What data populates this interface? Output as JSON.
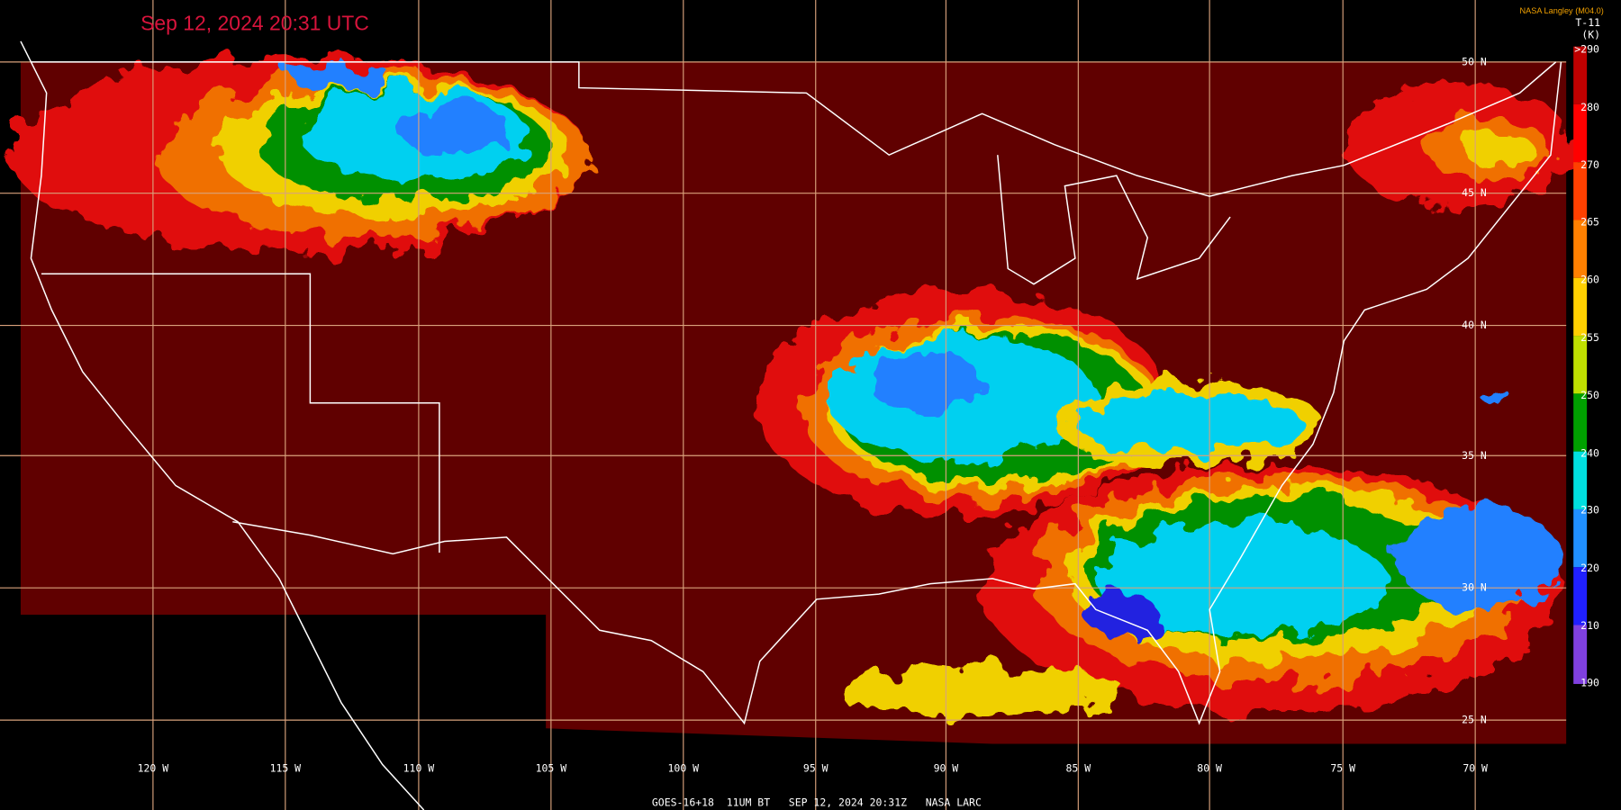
{
  "header": {
    "title": "Sep 12, 2024 20:31 UTC",
    "credit": "NASA Langley (M04.0)"
  },
  "colorbar": {
    "channel": "T-11",
    "unit": "(K)",
    "labels": [
      ">290",
      "280",
      "270",
      "265",
      "260",
      "255",
      "250",
      "240",
      "230",
      "220",
      "210",
      "190"
    ]
  },
  "latitude_labels": [
    "50 N",
    "45 N",
    "40 N",
    "35 N",
    "30 N",
    "25 N"
  ],
  "longitude_labels": [
    "120 W",
    "115 W",
    "110 W",
    "105 W",
    "100 W",
    "95 W",
    "90 W",
    "85 W",
    "80 W",
    "75 W",
    "70 W"
  ],
  "footer": "GOES-16+18  11UM BT   SEP 12, 2024 20:31Z   NASA LARC"
}
